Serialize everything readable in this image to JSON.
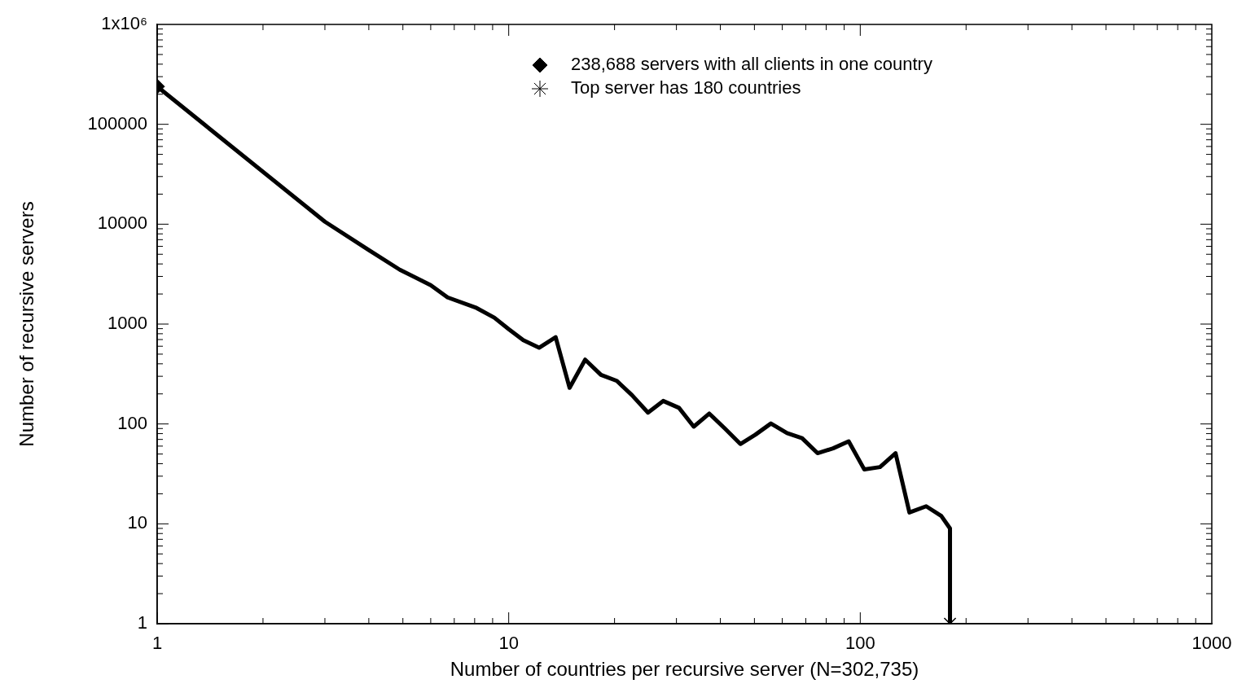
{
  "chart_data": {
    "type": "line",
    "xlabel": "Number of countries per recursive server (N=302,735)",
    "ylabel": "Number of recursive servers",
    "log": "xy",
    "xlim": [
      1,
      1000
    ],
    "xticks": [
      1,
      10,
      100,
      1000
    ],
    "ylim": [
      1,
      1000000
    ],
    "yticks": [
      1,
      10,
      100,
      1000,
      10000,
      100000,
      {
        "value": 1000000,
        "label": "1x10⁶"
      }
    ],
    "grid": false,
    "legend": "top",
    "line_style": "solid",
    "series": [
      {
        "color": "#000000",
        "marker": "none",
        "x": [
          1,
          3,
          4,
          4.9,
          6,
          6.7,
          8.1,
          9.1,
          10,
          11,
          12.2,
          13.6,
          14.9,
          16.5,
          18.3,
          20.3,
          22.4,
          24.9,
          27.5,
          30.5,
          33.6,
          37.2,
          41.2,
          45.6,
          50.3,
          55.7,
          61.9,
          68.3,
          75.6,
          83.7,
          92.7,
          102.7,
          113.8,
          126,
          138,
          154,
          170,
          180,
          180
        ],
        "values": [
          238688,
          10600,
          5500,
          3500,
          2450,
          1850,
          1450,
          1160,
          890,
          690,
          580,
          740,
          230,
          440,
          310,
          270,
          195,
          130,
          170,
          145,
          94,
          127,
          90,
          63,
          78,
          101,
          81,
          72,
          51,
          57,
          67,
          35,
          37,
          51,
          13,
          15,
          12,
          9,
          1
        ]
      },
      {
        "type": "scatter",
        "name": "238,688 servers with all clients in one country",
        "color": "#000000",
        "marker": "diamond",
        "x": [
          1
        ],
        "values": [
          238688
        ]
      },
      {
        "type": "scatter",
        "name": "Top server has 180 countries",
        "color": "#000000",
        "marker": "cross",
        "x": [
          180
        ],
        "values": [
          1
        ]
      }
    ]
  }
}
